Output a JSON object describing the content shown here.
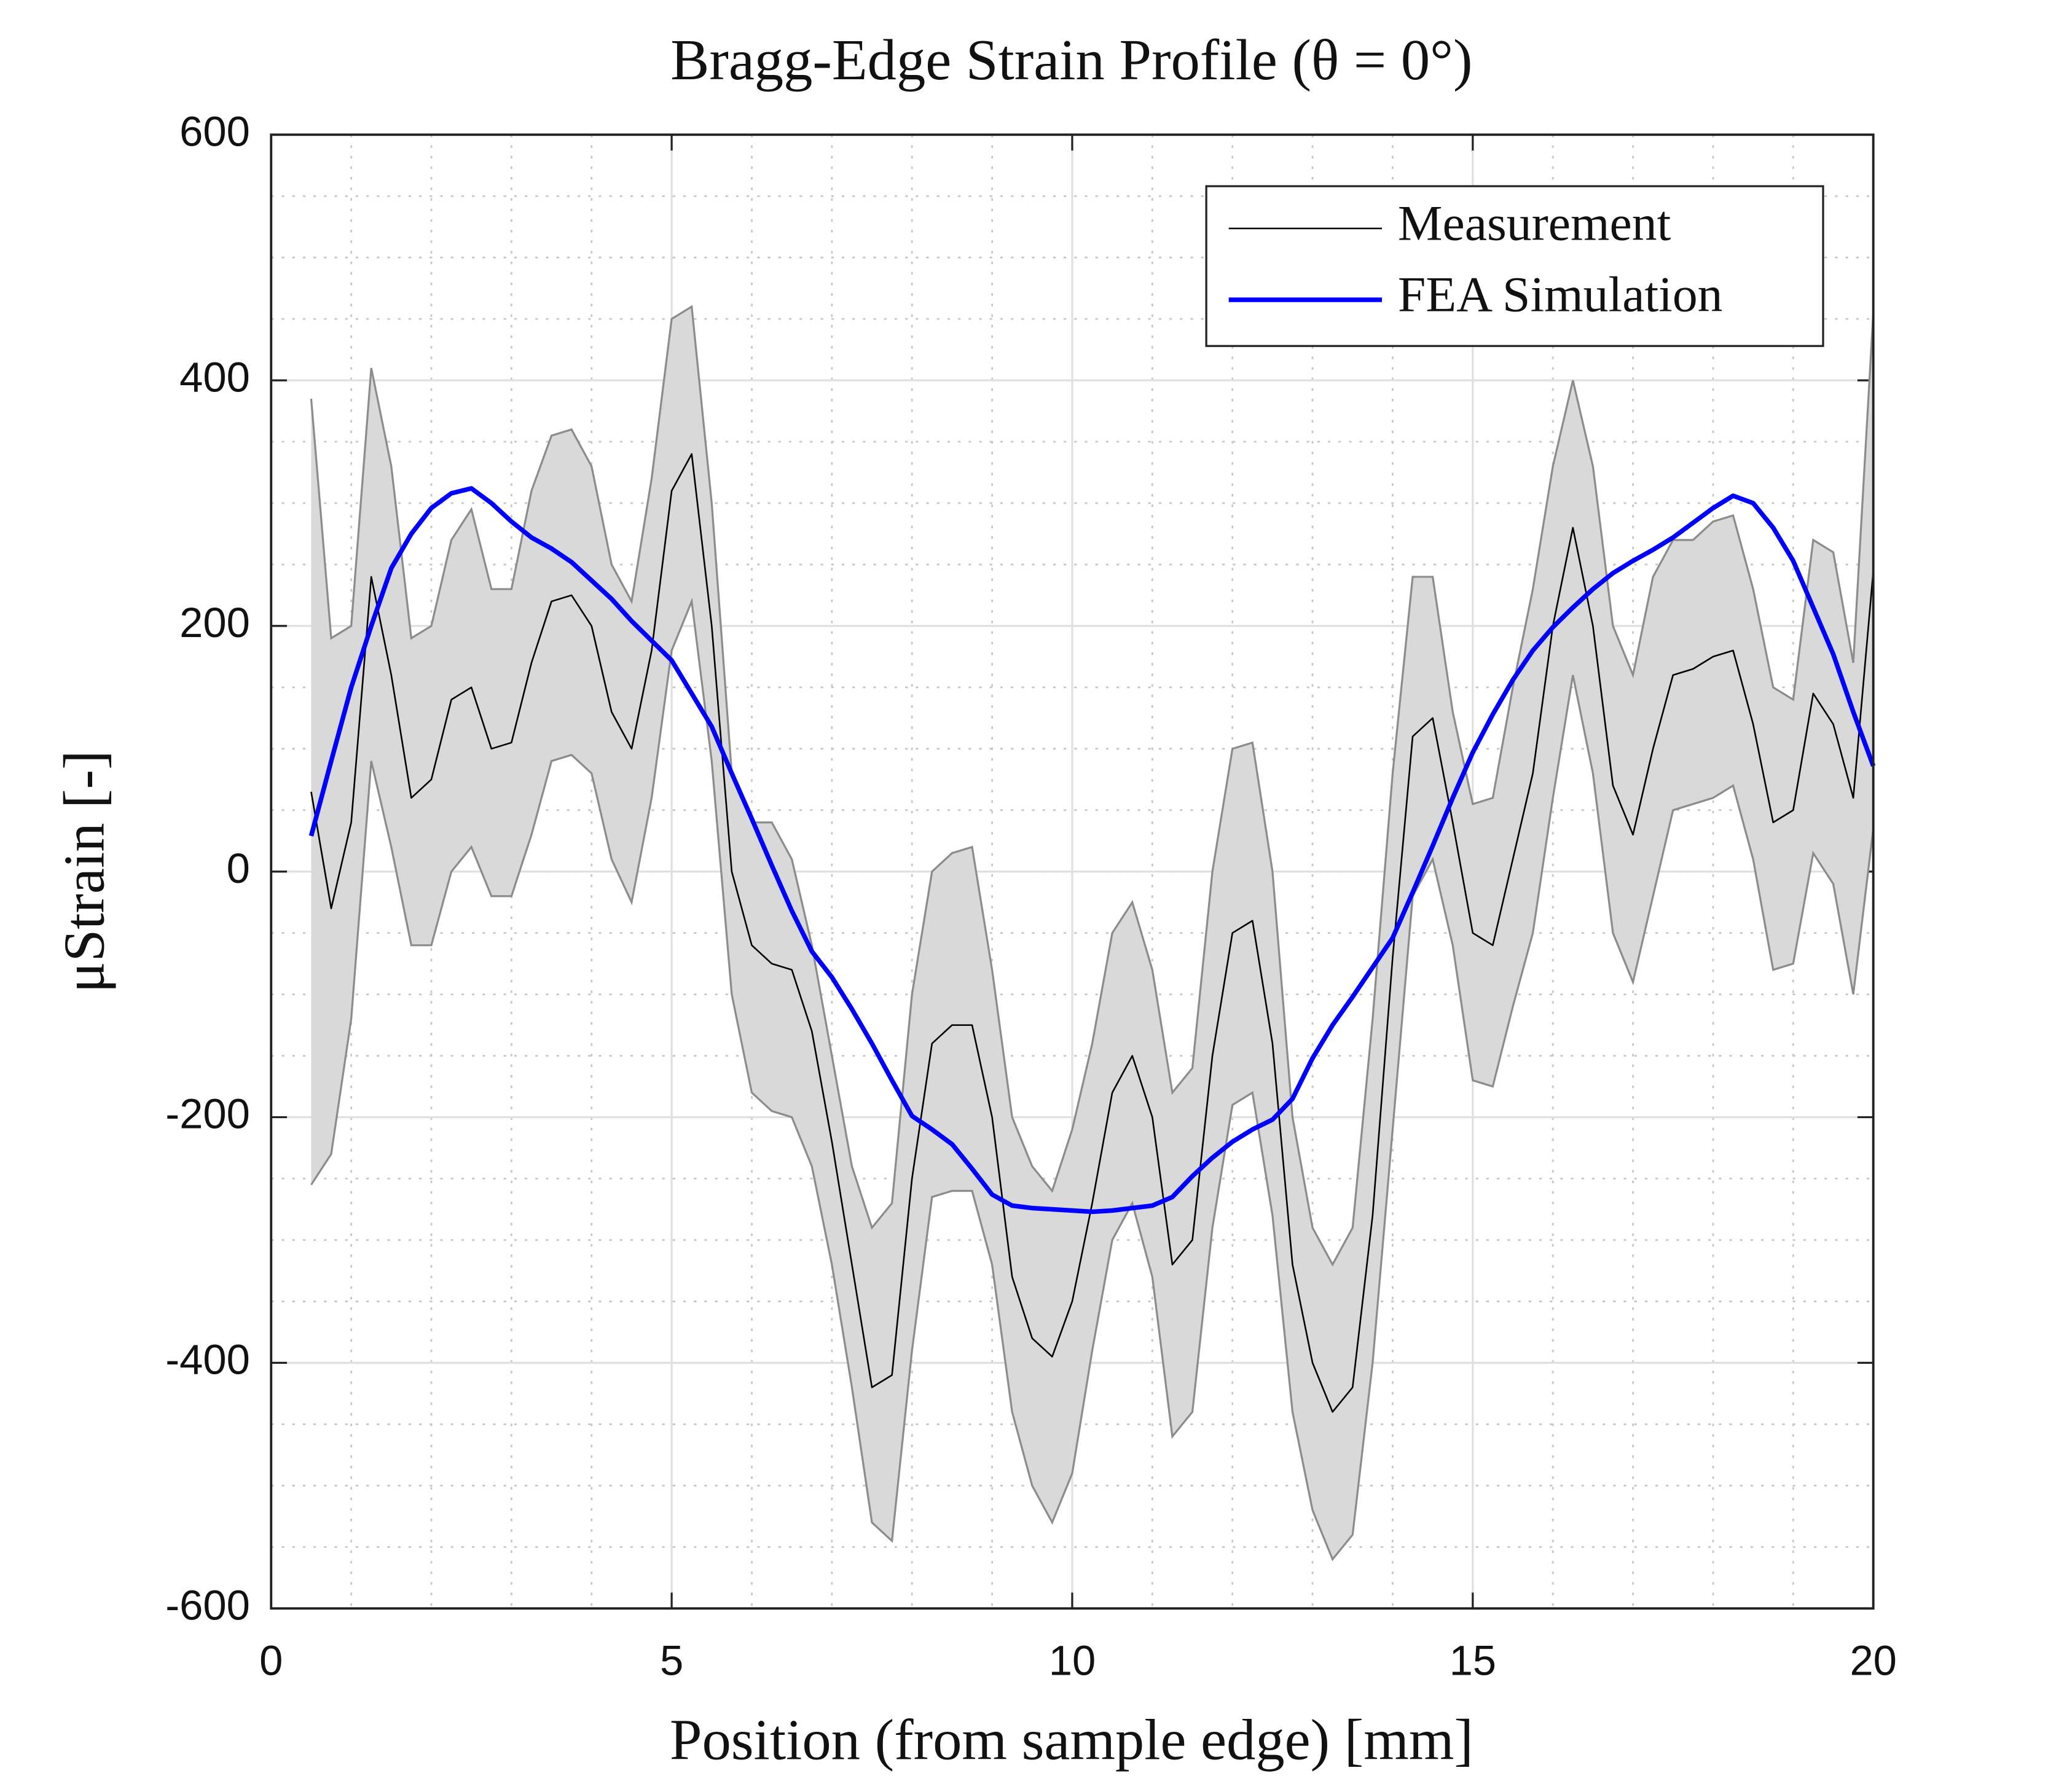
{
  "chart_data": {
    "type": "line",
    "title": "Bragg-Edge Strain Profile (θ = 0°)",
    "xlabel": "Position (from sample edge) [mm]",
    "ylabel": "μStrain [-]",
    "xlim": [
      0,
      20
    ],
    "ylim": [
      -600,
      600
    ],
    "xticks": [
      0,
      5,
      10,
      15,
      20
    ],
    "yticks": [
      -600,
      -400,
      -200,
      0,
      200,
      400,
      600
    ],
    "grid": true,
    "minor_grid": true,
    "x_minor_step": 1,
    "y_minor_step": 50,
    "legend": "upper right",
    "x": [
      0.5,
      0.75,
      1.0,
      1.25,
      1.5,
      1.75,
      2.0,
      2.25,
      2.5,
      2.75,
      3.0,
      3.25,
      3.5,
      3.75,
      4.0,
      4.25,
      4.5,
      4.75,
      5.0,
      5.25,
      5.5,
      5.75,
      6.0,
      6.25,
      6.5,
      6.75,
      7.0,
      7.25,
      7.5,
      7.75,
      8.0,
      8.25,
      8.5,
      8.75,
      9.0,
      9.25,
      9.5,
      9.75,
      10.0,
      10.25,
      10.5,
      10.75,
      11.0,
      11.25,
      11.5,
      11.75,
      12.0,
      12.25,
      12.5,
      12.75,
      13.0,
      13.25,
      13.5,
      13.75,
      14.0,
      14.25,
      14.5,
      14.75,
      15.0,
      15.25,
      15.5,
      15.75,
      16.0,
      16.25,
      16.5,
      16.75,
      17.0,
      17.25,
      17.5,
      17.75,
      18.0,
      18.25,
      18.5,
      18.75,
      19.0,
      19.25,
      19.5,
      19.75,
      20.0
    ],
    "band": {
      "color": "#d9d9d9",
      "edge_color": "#8c8c8c",
      "upper": [
        385,
        190,
        200,
        410,
        330,
        190,
        200,
        270,
        295,
        230,
        230,
        310,
        355,
        360,
        330,
        250,
        220,
        320,
        450,
        460,
        300,
        80,
        40,
        40,
        10,
        -60,
        -150,
        -240,
        -290,
        -270,
        -100,
        0,
        15,
        20,
        -80,
        -200,
        -240,
        -260,
        -210,
        -140,
        -50,
        -25,
        -80,
        -180,
        -160,
        0,
        100,
        105,
        0,
        -200,
        -290,
        -320,
        -290,
        -120,
        80,
        240,
        240,
        130,
        55,
        60,
        150,
        230,
        330,
        400,
        330,
        200,
        160,
        240,
        270,
        270,
        285,
        290,
        230,
        150,
        140,
        270,
        260,
        170,
        455
      ],
      "lower": [
        -255,
        -230,
        -120,
        90,
        20,
        -60,
        -60,
        0,
        20,
        -20,
        -20,
        30,
        90,
        95,
        80,
        10,
        -25,
        60,
        180,
        220,
        90,
        -100,
        -180,
        -195,
        -200,
        -240,
        -320,
        -420,
        -530,
        -545,
        -390,
        -265,
        -260,
        -260,
        -320,
        -440,
        -500,
        -530,
        -490,
        -390,
        -300,
        -270,
        -330,
        -460,
        -440,
        -290,
        -190,
        -180,
        -280,
        -440,
        -520,
        -560,
        -540,
        -400,
        -210,
        -20,
        10,
        -60,
        -170,
        -175,
        -110,
        -50,
        60,
        160,
        80,
        -50,
        -90,
        -20,
        50,
        55,
        60,
        70,
        10,
        -80,
        -75,
        15,
        -10,
        -100,
        35
      ]
    },
    "series": [
      {
        "name": "Measurement",
        "color": "#000000",
        "width": 1.2,
        "values": [
          65,
          -30,
          40,
          240,
          160,
          60,
          75,
          140,
          150,
          100,
          105,
          170,
          220,
          225,
          200,
          130,
          100,
          180,
          310,
          340,
          200,
          0,
          -60,
          -75,
          -80,
          -130,
          -220,
          -320,
          -420,
          -410,
          -250,
          -140,
          -125,
          -125,
          -200,
          -330,
          -380,
          -395,
          -350,
          -270,
          -180,
          -150,
          -200,
          -320,
          -300,
          -150,
          -50,
          -40,
          -140,
          -320,
          -400,
          -440,
          -420,
          -280,
          -70,
          110,
          125,
          40,
          -50,
          -60,
          10,
          80,
          200,
          280,
          200,
          70,
          30,
          100,
          160,
          165,
          175,
          180,
          120,
          40,
          50,
          145,
          120,
          60,
          245
        ]
      },
      {
        "name": "FEA Simulation",
        "color": "#0000ff",
        "width": 3.5,
        "values": [
          29,
          90,
          150,
          200,
          247,
          275,
          296,
          308,
          312,
          300,
          285,
          272,
          263,
          252,
          237,
          222,
          204,
          188,
          172,
          145,
          118,
          80,
          43,
          5,
          -32,
          -65,
          -86,
          -112,
          -140,
          -170,
          -199,
          -210,
          -222,
          -242,
          -263,
          -272,
          -274,
          -275,
          -276,
          -277,
          -276,
          -274,
          -272,
          -265,
          -248,
          -233,
          -220,
          -210,
          -202,
          -185,
          -152,
          -125,
          -102,
          -78,
          -54,
          -17,
          21,
          60,
          97,
          128,
          156,
          180,
          199,
          215,
          230,
          243,
          253,
          262,
          272,
          284,
          296,
          306,
          300,
          280,
          253,
          215,
          177,
          130,
          86
        ]
      }
    ]
  }
}
